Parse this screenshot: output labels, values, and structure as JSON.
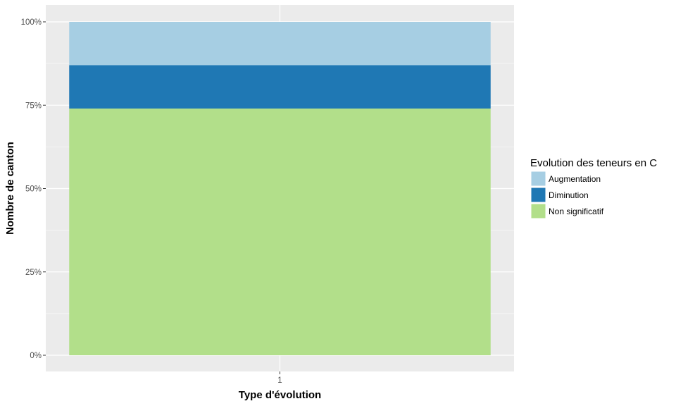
{
  "chart_data": {
    "type": "bar",
    "stacked": true,
    "categories": [
      "1"
    ],
    "series": [
      {
        "name": "Non significatif",
        "values": [
          74
        ],
        "color": "#B2DF8A"
      },
      {
        "name": "Diminution",
        "values": [
          13
        ],
        "color": "#1F78B4"
      },
      {
        "name": "Augmentation",
        "values": [
          13
        ],
        "color": "#A6CEE3"
      }
    ],
    "xlabel": "Type d'évolution",
    "ylabel": "Nombre de canton",
    "ylim": [
      0,
      100
    ],
    "yticks": [
      "0%",
      "25%",
      "50%",
      "75%",
      "100%"
    ],
    "ytick_values": [
      0,
      25,
      50,
      75,
      100
    ],
    "grid": true,
    "legend": {
      "title": "Evolution des teneurs en C",
      "placement": "right",
      "order": [
        "Augmentation",
        "Diminution",
        "Non significatif"
      ]
    },
    "colors": {
      "panel": "#EBEBEB",
      "grid": "#FFFFFF"
    }
  }
}
